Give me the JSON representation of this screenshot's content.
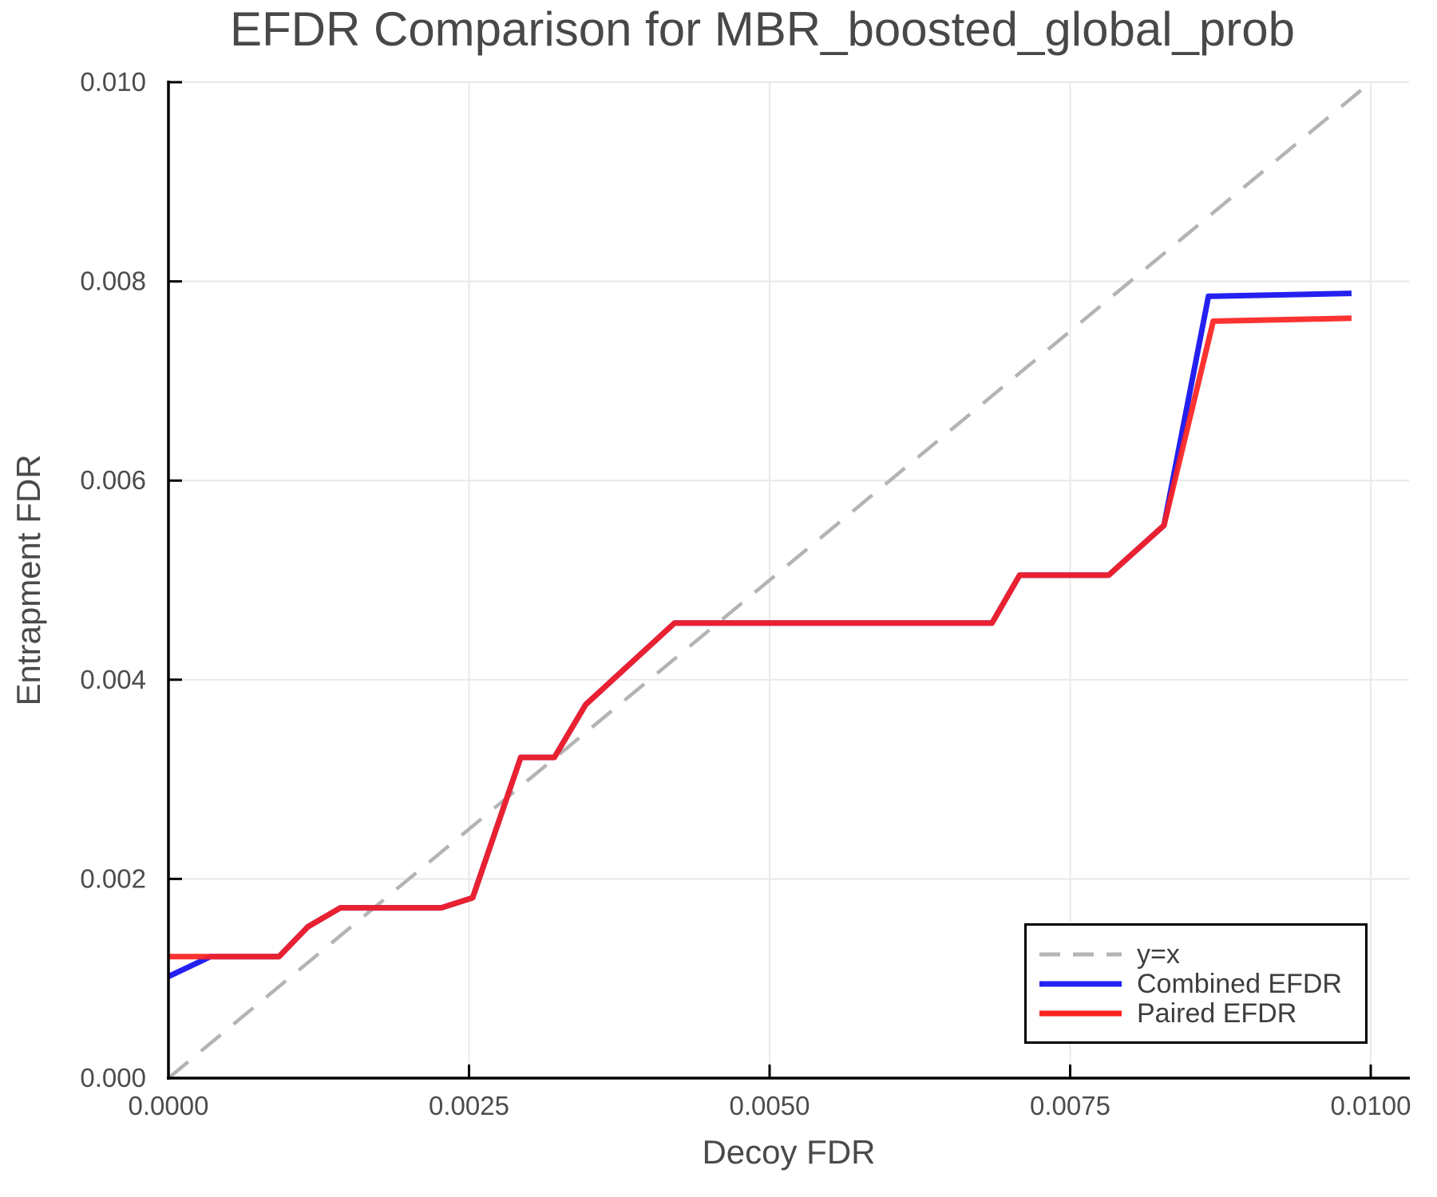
{
  "chart_data": {
    "type": "line",
    "title": "EFDR Comparison for MBR_boosted_global_prob",
    "xlabel": "Decoy FDR",
    "ylabel": "Entrapment FDR",
    "xlim": [
      0,
      0.0103
    ],
    "ylim": [
      0,
      0.01
    ],
    "grid": true,
    "legend_position": "lower right",
    "x_axis": {
      "tick_values": [
        0,
        0.0025,
        0.005,
        0.0075,
        0.01
      ],
      "tick_labels": [
        "0.0000",
        "0.0025",
        "0.0050",
        "0.0075",
        "0.0100"
      ]
    },
    "y_axis": {
      "tick_values": [
        0,
        0.002,
        0.004,
        0.006,
        0.008,
        0.01
      ],
      "tick_labels": [
        "0.000",
        "0.002",
        "0.004",
        "0.006",
        "0.008",
        "0.010"
      ]
    },
    "colors": {
      "grid": "#e9e9e9",
      "axis": "#000000",
      "identity": "#b4b4b4",
      "combined": "#2420f0",
      "paired": "#fb221f"
    },
    "series": [
      {
        "name": "y=x",
        "role": "identity",
        "color": "#b4b4b4",
        "dashed": true,
        "width": 4.5,
        "opacity": 1,
        "points": [
          [
            0,
            0
          ],
          [
            0.01,
            0.01
          ]
        ]
      },
      {
        "name": "Combined EFDR",
        "role": "combined",
        "color": "#2420f0",
        "dashed": false,
        "width": 7,
        "opacity": 1,
        "points": [
          [
            0,
            0.00102
          ],
          [
            0.00035,
            0.00122
          ],
          [
            0.00092,
            0.00122
          ],
          [
            0.00116,
            0.00152
          ],
          [
            0.00143,
            0.00171
          ],
          [
            0.00227,
            0.00171
          ],
          [
            0.00253,
            0.00181
          ],
          [
            0.00293,
            0.00322
          ],
          [
            0.00321,
            0.00322
          ],
          [
            0.00347,
            0.00375
          ],
          [
            0.00421,
            0.00457
          ],
          [
            0.00685,
            0.00457
          ],
          [
            0.00708,
            0.00505
          ],
          [
            0.00782,
            0.00505
          ],
          [
            0.00828,
            0.00555
          ],
          [
            0.00865,
            0.00785
          ],
          [
            0.00984,
            0.00788
          ]
        ]
      },
      {
        "name": "Paired EFDR",
        "role": "paired",
        "color": "#fb221f",
        "dashed": false,
        "width": 7,
        "opacity": 0.92,
        "points": [
          [
            0,
            0.00122
          ],
          [
            0.00092,
            0.00122
          ],
          [
            0.00116,
            0.00152
          ],
          [
            0.00143,
            0.00171
          ],
          [
            0.00227,
            0.00171
          ],
          [
            0.00253,
            0.00181
          ],
          [
            0.00293,
            0.00322
          ],
          [
            0.00321,
            0.00322
          ],
          [
            0.00347,
            0.00375
          ],
          [
            0.00421,
            0.00457
          ],
          [
            0.00685,
            0.00457
          ],
          [
            0.00708,
            0.00505
          ],
          [
            0.00782,
            0.00505
          ],
          [
            0.00828,
            0.00555
          ],
          [
            0.00869,
            0.0076
          ],
          [
            0.00984,
            0.00763
          ]
        ]
      }
    ]
  }
}
